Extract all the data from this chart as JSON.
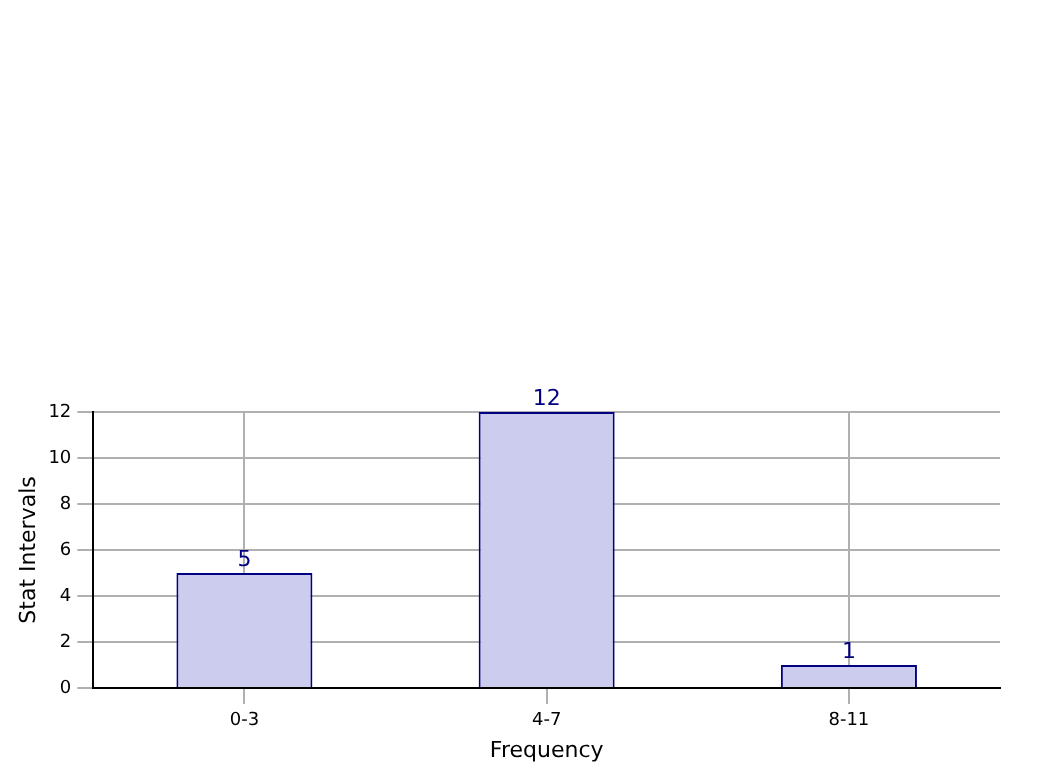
{
  "chart_data": {
    "type": "bar",
    "xlabel": "Frequency",
    "ylabel": "Stat Intervals",
    "categories": [
      "0-3",
      "4-7",
      "8-11"
    ],
    "series": [
      {
        "color": "#ccccee",
        "values": [
          5,
          12,
          1
        ]
      }
    ],
    "ylim": [
      0,
      12
    ],
    "yticks": [
      0,
      2,
      4,
      6,
      8,
      10,
      12
    ],
    "grid": true,
    "data_labels": true
  }
}
